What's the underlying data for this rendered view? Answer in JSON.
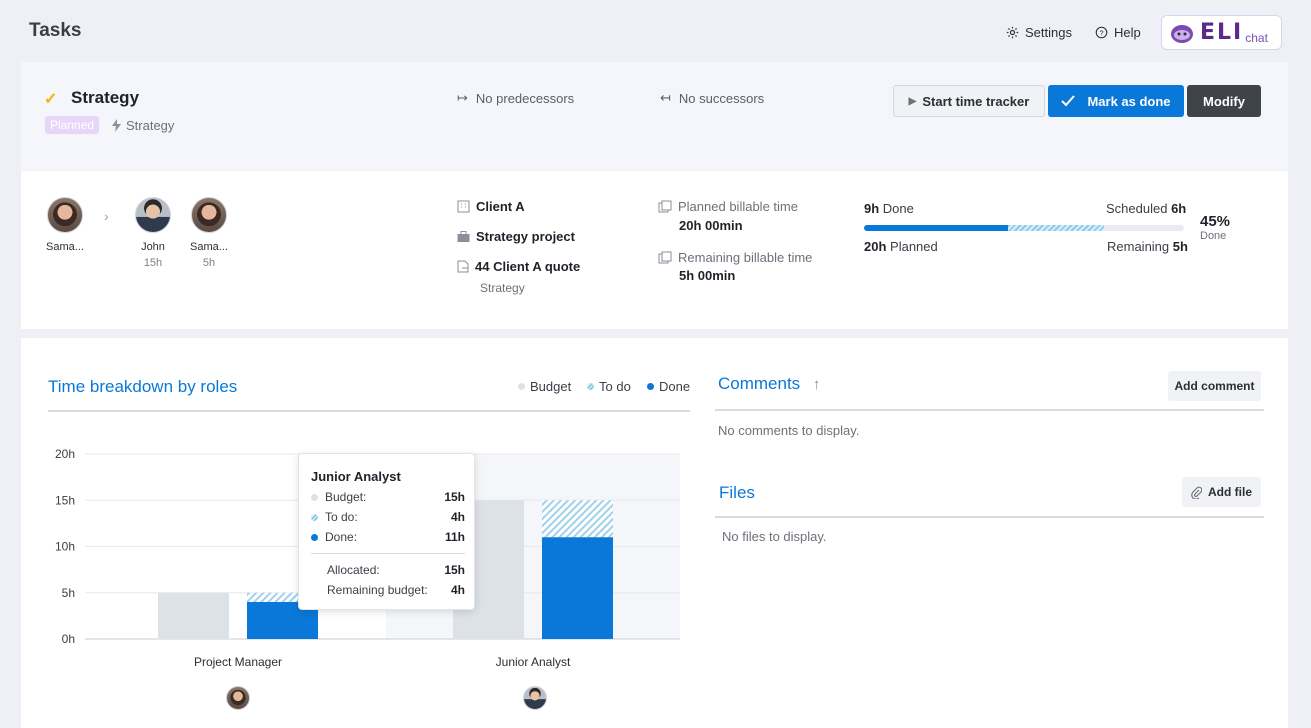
{
  "header": {
    "title": "Tasks",
    "settings_label": "Settings",
    "help_label": "Help",
    "eli_logo": "ELI",
    "eli_chat": "chat"
  },
  "task": {
    "name": "Strategy",
    "status": "Planned",
    "phase": "Strategy",
    "predecessors": "No predecessors",
    "successors": "No successors"
  },
  "actions": {
    "start_tracker": "Start time tracker",
    "mark_done": "Mark as done",
    "modify": "Modify"
  },
  "assignees": [
    {
      "name": "Sama...",
      "hours": ""
    },
    {
      "name": "John",
      "hours": "15h"
    },
    {
      "name": "Sama...",
      "hours": "5h"
    }
  ],
  "meta": {
    "client": "Client A",
    "project": "Strategy project",
    "quote": "44 Client A quote",
    "quote_sub": "Strategy"
  },
  "billable": {
    "planned_label": "Planned billable time",
    "planned_value": "20h 00min",
    "remaining_label": "Remaining billable time",
    "remaining_value": "5h 00min"
  },
  "progress": {
    "done_value": "9h",
    "done_label": "Done",
    "scheduled_label": "Scheduled",
    "scheduled_value": "6h",
    "planned_value": "20h",
    "planned_label": "Planned",
    "remaining_label": "Remaining",
    "remaining_value": "5h",
    "percent": "45%",
    "percent_label": "Done",
    "done_fraction": 0.45,
    "todo_fraction": 0.3
  },
  "breakdown": {
    "title": "Time breakdown by roles",
    "legend_budget": "Budget",
    "legend_todo": "To do",
    "legend_done": "Done"
  },
  "chart_data": {
    "type": "bar",
    "categories": [
      "Project Manager",
      "Junior Analyst"
    ],
    "series": [
      {
        "name": "Budget",
        "values": [
          5,
          15
        ]
      },
      {
        "name": "To do",
        "values": [
          1,
          4
        ]
      },
      {
        "name": "Done",
        "values": [
          4,
          11
        ]
      }
    ],
    "ylim": [
      0,
      20
    ],
    "yticks": [
      "0h",
      "5h",
      "10h",
      "15h",
      "20h"
    ],
    "colors": {
      "budget": "#dde1e8",
      "todo": "#a9d6ee",
      "done": "#0a78d8"
    }
  },
  "tooltip": {
    "title": "Junior Analyst",
    "budget_label": "Budget:",
    "budget_value": "15h",
    "todo_label": "To do:",
    "todo_value": "4h",
    "done_label": "Done:",
    "done_value": "11h",
    "allocated_label": "Allocated:",
    "allocated_value": "15h",
    "remaining_label": "Remaining budget:",
    "remaining_value": "4h"
  },
  "comments": {
    "title": "Comments",
    "add_label": "Add comment",
    "empty": "No comments to display."
  },
  "files": {
    "title": "Files",
    "add_label": "Add file",
    "empty": "No files to display."
  }
}
